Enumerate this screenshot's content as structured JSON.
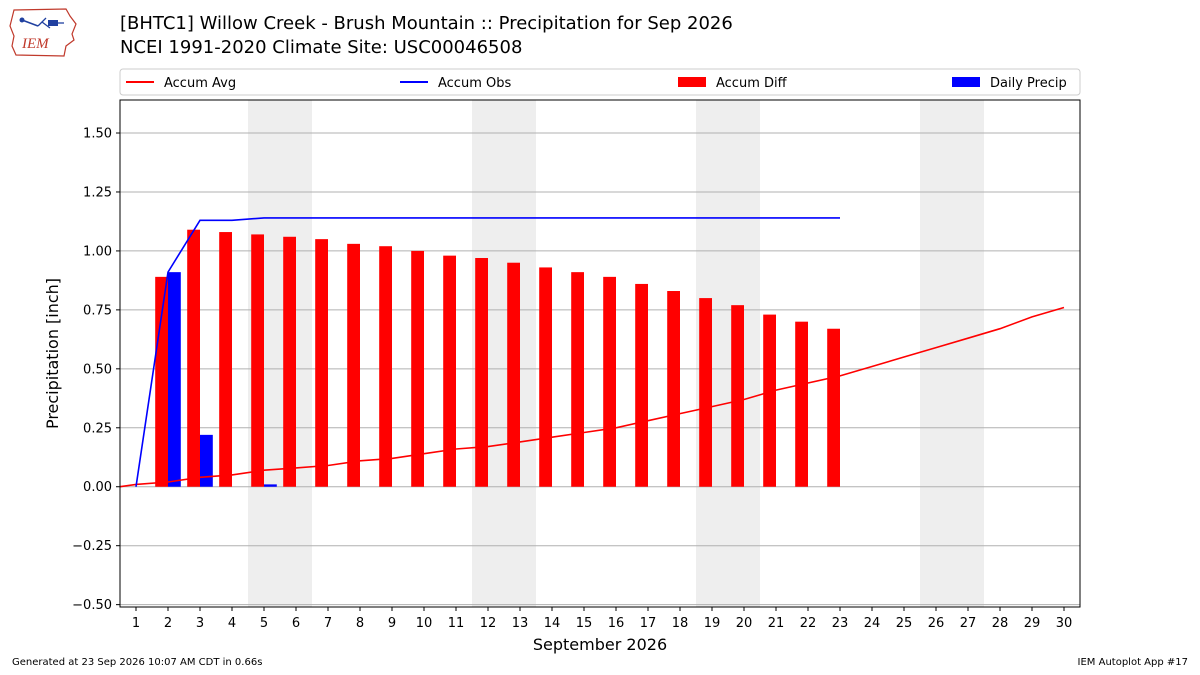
{
  "header": {
    "title_line1": "[BHTC1] Willow Creek - Brush Mountain :: Precipitation for Sep 2026",
    "title_line2": "NCEI 1991-2020 Climate Site: USC00046508"
  },
  "logo": {
    "text": "IEM",
    "icon": "iowa-state-outline-logo"
  },
  "footer": {
    "generated": "Generated at 23 Sep 2026 10:07 AM CDT in 0.66s",
    "app": "IEM Autoplot App #17"
  },
  "chart_data": {
    "type": "bar",
    "title": "[BHTC1] Willow Creek - Brush Mountain :: Precipitation for Sep 2026",
    "xlabel": "September 2026",
    "ylabel": "Precipitation [inch]",
    "xlim": [
      0.5,
      30.5
    ],
    "ylim": [
      -0.51,
      1.64
    ],
    "xticks": [
      1,
      2,
      3,
      4,
      5,
      6,
      7,
      8,
      9,
      10,
      11,
      12,
      13,
      14,
      15,
      16,
      17,
      18,
      19,
      20,
      21,
      22,
      23,
      24,
      25,
      26,
      27,
      28,
      29,
      30
    ],
    "yticks": [
      -0.5,
      -0.25,
      0.0,
      0.25,
      0.5,
      0.75,
      1.0,
      1.25,
      1.5
    ],
    "ytick_labels": [
      "−0.50",
      "−0.25",
      "0.00",
      "0.25",
      "0.50",
      "0.75",
      "1.00",
      "1.25",
      "1.50"
    ],
    "grid": true,
    "weekend_shading": [
      [
        4.5,
        6.5
      ],
      [
        11.5,
        13.5
      ],
      [
        18.5,
        20.5
      ],
      [
        25.5,
        27.5
      ]
    ],
    "legend": {
      "placement": "top",
      "entries": [
        {
          "label": "Accum Avg",
          "kind": "line",
          "color": "#ff0000"
        },
        {
          "label": "Accum Obs",
          "kind": "line",
          "color": "#0000ff"
        },
        {
          "label": "Accum Diff",
          "kind": "bar",
          "color": "#ff0000"
        },
        {
          "label": "Daily Precip",
          "kind": "bar",
          "color": "#0000ff"
        }
      ]
    },
    "series": [
      {
        "name": "Accum Avg",
        "kind": "line",
        "color": "#ff0000",
        "x": [
          0.5,
          1,
          2,
          3,
          4,
          5,
          6,
          7,
          8,
          9,
          10,
          11,
          12,
          13,
          14,
          15,
          16,
          17,
          18,
          19,
          20,
          21,
          22,
          23,
          24,
          25,
          26,
          27,
          28,
          29,
          30
        ],
        "values": [
          0.0,
          0.01,
          0.02,
          0.04,
          0.05,
          0.07,
          0.08,
          0.09,
          0.11,
          0.12,
          0.14,
          0.16,
          0.17,
          0.19,
          0.21,
          0.23,
          0.25,
          0.28,
          0.31,
          0.34,
          0.37,
          0.41,
          0.44,
          0.47,
          0.51,
          0.55,
          0.59,
          0.63,
          0.67,
          0.72,
          0.76
        ]
      },
      {
        "name": "Accum Obs",
        "kind": "line",
        "color": "#0000ff",
        "x": [
          1,
          2,
          3,
          4,
          5,
          6,
          7,
          8,
          9,
          10,
          11,
          12,
          13,
          14,
          15,
          16,
          17,
          18,
          19,
          20,
          21,
          22,
          23
        ],
        "values": [
          0.0,
          0.91,
          1.13,
          1.13,
          1.14,
          1.14,
          1.14,
          1.14,
          1.14,
          1.14,
          1.14,
          1.14,
          1.14,
          1.14,
          1.14,
          1.14,
          1.14,
          1.14,
          1.14,
          1.14,
          1.14,
          1.14,
          1.14
        ]
      },
      {
        "name": "Accum Diff",
        "kind": "bar",
        "color": "#ff0000",
        "x": [
          2,
          3,
          4,
          5,
          6,
          7,
          8,
          9,
          10,
          11,
          12,
          13,
          14,
          15,
          16,
          17,
          18,
          19,
          20,
          21,
          22,
          23
        ],
        "values": [
          0.89,
          1.09,
          1.08,
          1.07,
          1.06,
          1.05,
          1.03,
          1.02,
          1.0,
          0.98,
          0.97,
          0.95,
          0.93,
          0.91,
          0.89,
          0.86,
          0.83,
          0.8,
          0.77,
          0.73,
          0.7,
          0.67
        ]
      },
      {
        "name": "Daily Precip",
        "kind": "bar",
        "color": "#0000ff",
        "x": [
          2,
          3,
          5
        ],
        "values": [
          0.91,
          0.22,
          0.01
        ]
      }
    ]
  }
}
